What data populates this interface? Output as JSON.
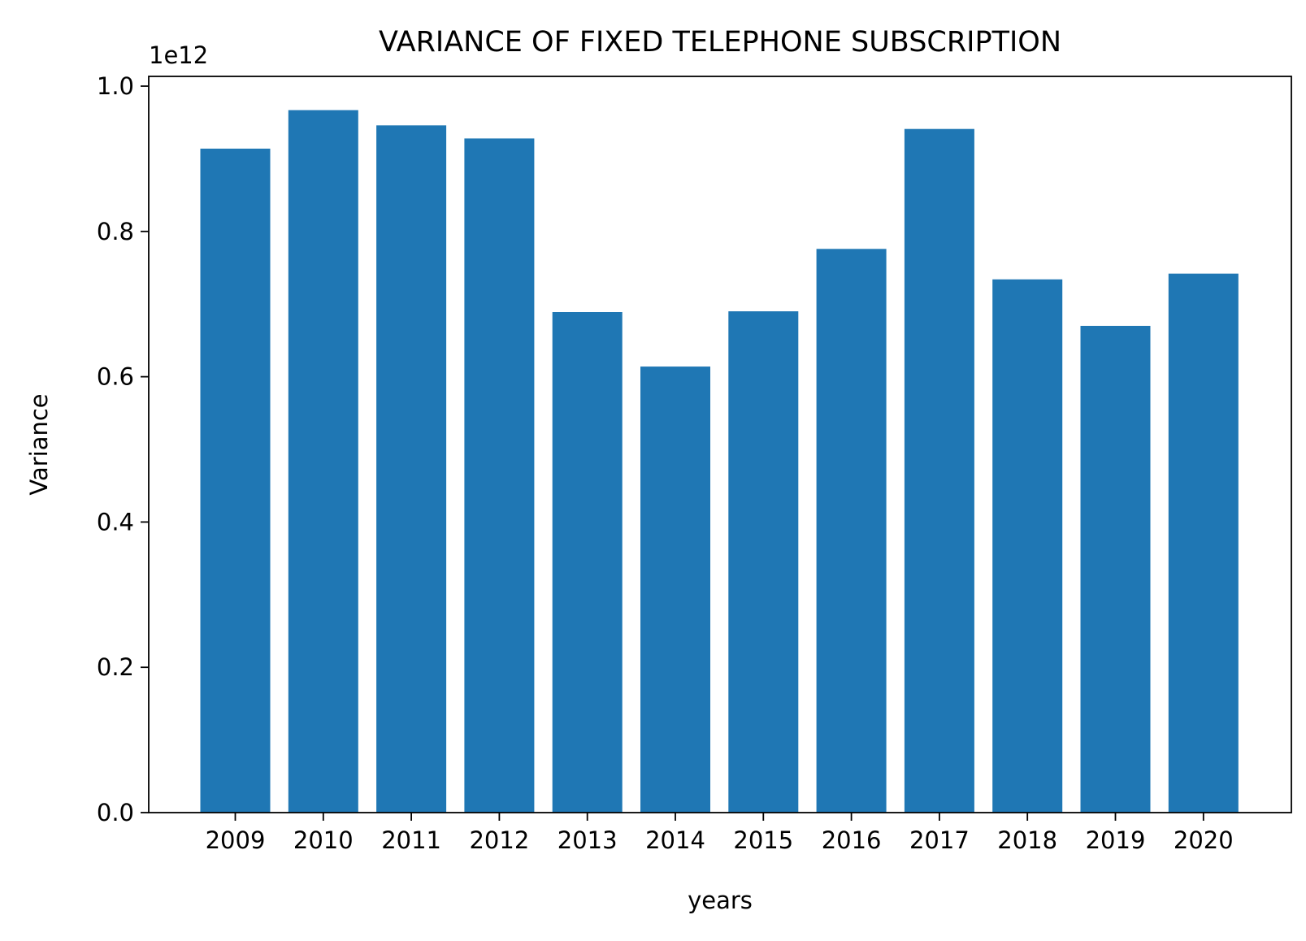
{
  "chart_data": {
    "type": "bar",
    "title": "VARIANCE OF FIXED TELEPHONE SUBSCRIPTION",
    "xlabel": "years",
    "ylabel": "Variance",
    "y_offset_label": "1e12",
    "categories": [
      "2009",
      "2010",
      "2011",
      "2012",
      "2013",
      "2014",
      "2015",
      "2016",
      "2017",
      "2018",
      "2019",
      "2020"
    ],
    "values": [
      0.914,
      0.967,
      0.946,
      0.928,
      0.689,
      0.614,
      0.69,
      0.776,
      0.941,
      0.734,
      0.67,
      0.742
    ],
    "value_multiplier": 1000000000000.0,
    "ylim": [
      0,
      1.0
    ],
    "yticks": [
      "0.0",
      "0.2",
      "0.4",
      "0.6",
      "0.8",
      "1.0"
    ],
    "grid": false,
    "legend": "none",
    "bar_color": "#1f77b4"
  }
}
